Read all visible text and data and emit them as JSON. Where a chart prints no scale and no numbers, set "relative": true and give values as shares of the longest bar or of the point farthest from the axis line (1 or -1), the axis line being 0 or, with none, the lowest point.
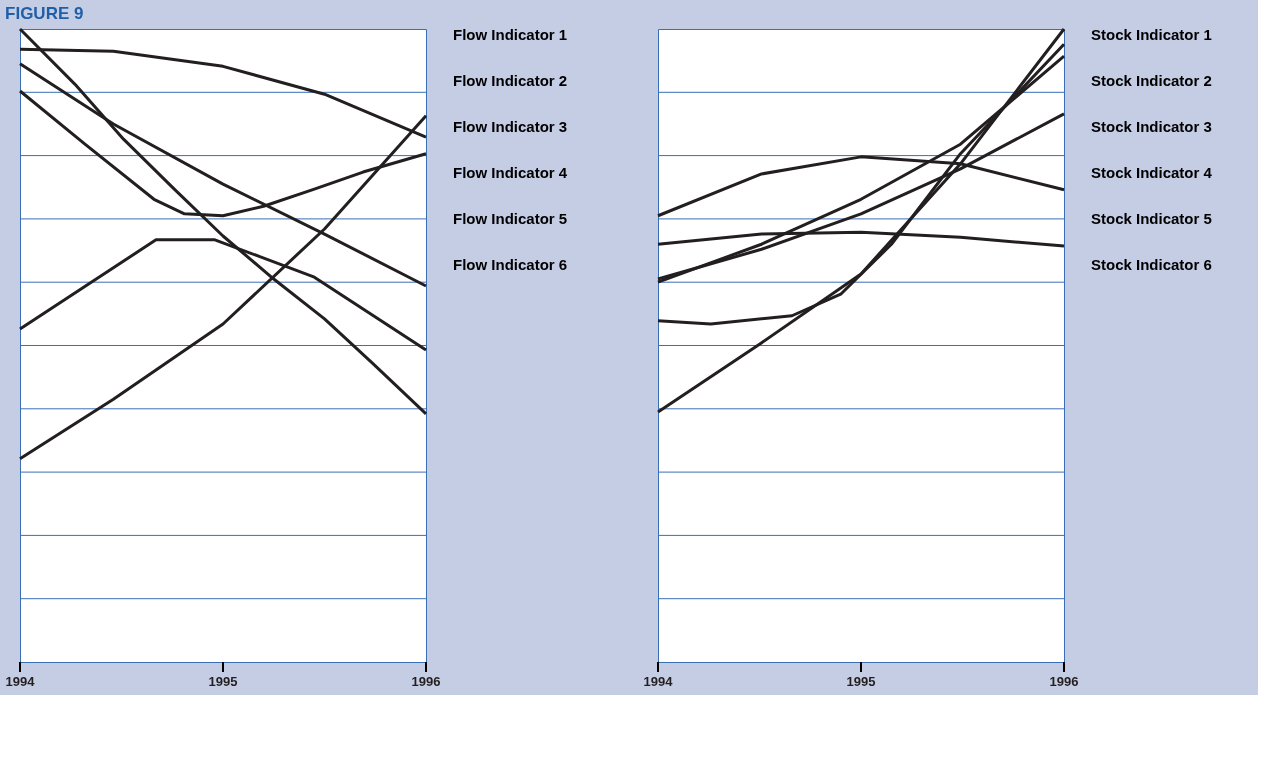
{
  "chart_data": [
    {
      "type": "line",
      "title": "FIGURE 9",
      "relative": true,
      "xlim": [
        1994,
        1996
      ],
      "xticks": [
        1994,
        1995,
        1996
      ],
      "marker": "none",
      "line_style": "solid",
      "ref_lines": [
        {
          "axis": "y",
          "value": 0.1,
          "color": "#3a6fb5"
        },
        {
          "axis": "y",
          "value": 0.2,
          "color": "#3a6fb5"
        },
        {
          "axis": "y",
          "value": 0.3,
          "color": "#3a6fb5"
        },
        {
          "axis": "y",
          "value": 0.4,
          "color": "#3a6fb5"
        },
        {
          "axis": "y",
          "value": 0.5,
          "color": "#3a6fb5"
        },
        {
          "axis": "y",
          "value": 0.6,
          "color": "#3a6fb5"
        },
        {
          "axis": "y",
          "value": 0.7,
          "color": "#3a6fb5"
        },
        {
          "axis": "y",
          "value": 0.8,
          "color": "#3a6fb5"
        },
        {
          "axis": "y",
          "value": 0.9,
          "color": "#3a6fb5"
        }
      ],
      "annotations": [
        "Flow Indicator 1",
        "Flow Indicator 2",
        "Flow Indicator 3",
        "Flow Indicator 4",
        "Flow Indicator 5",
        "Flow Indicator 6"
      ],
      "series": [
        {
          "color": "#231f20",
          "x": [
            1994,
            1994.27,
            1994.51,
            1994.76,
            1995,
            1995.25,
            1995.5,
            1995.74,
            1996
          ],
          "values": [
            1.0,
            0.913,
            0.826,
            0.747,
            0.673,
            0.605,
            0.542,
            0.471,
            0.392
          ]
        },
        {
          "color": "#231f20",
          "x": [
            1994,
            1994.46,
            1995,
            1995.5,
            1996
          ],
          "values": [
            0.968,
            0.965,
            0.941,
            0.897,
            0.829
          ]
        },
        {
          "color": "#231f20",
          "x": [
            1994,
            1994.46,
            1995,
            1995.5,
            1996
          ],
          "values": [
            0.945,
            0.85,
            0.755,
            0.676,
            0.594
          ]
        },
        {
          "color": "#231f20",
          "x": [
            1994,
            1994.32,
            1994.66,
            1994.81,
            1995,
            1995.2,
            1995.45,
            1995.69,
            1996
          ],
          "values": [
            0.902,
            0.818,
            0.731,
            0.708,
            0.705,
            0.72,
            0.747,
            0.774,
            0.803
          ]
        },
        {
          "color": "#231f20",
          "x": [
            1994,
            1994.67,
            1994.96,
            1995.45,
            1996
          ],
          "values": [
            0.526,
            0.667,
            0.667,
            0.608,
            0.493
          ]
        },
        {
          "color": "#231f20",
          "x": [
            1994,
            1994.46,
            1995,
            1995.5,
            1996
          ],
          "values": [
            0.321,
            0.415,
            0.534,
            0.684,
            0.863
          ]
        }
      ]
    },
    {
      "type": "line",
      "relative": true,
      "xlim": [
        1994,
        1996
      ],
      "xticks": [
        1994,
        1995,
        1996
      ],
      "marker": "none",
      "line_style": "solid",
      "ref_lines": [
        {
          "axis": "y",
          "value": 0.1,
          "color": "#3a6fb5"
        },
        {
          "axis": "y",
          "value": 0.2,
          "color": "#3a6fb5"
        },
        {
          "axis": "y",
          "value": 0.3,
          "color": "#3a6fb5"
        },
        {
          "axis": "y",
          "value": 0.4,
          "color": "#3a6fb5"
        },
        {
          "axis": "y",
          "value": 0.5,
          "color": "#3a6fb5"
        },
        {
          "axis": "y",
          "value": 0.6,
          "color": "#3a6fb5"
        },
        {
          "axis": "y",
          "value": 0.7,
          "color": "#3a6fb5"
        },
        {
          "axis": "y",
          "value": 0.8,
          "color": "#3a6fb5"
        },
        {
          "axis": "y",
          "value": 0.9,
          "color": "#3a6fb5"
        }
      ],
      "annotations": [
        "Stock Indicator 1",
        "Stock Indicator 2",
        "Stock Indicator 3",
        "Stock Indicator 4",
        "Stock Indicator 5",
        "Stock Indicator 6"
      ],
      "series": [
        {
          "color": "#231f20",
          "x": [
            1994,
            1994.5,
            1995,
            1995.49,
            1996
          ],
          "values": [
            0.395,
            0.502,
            0.613,
            0.787,
            1.0
          ]
        },
        {
          "color": "#231f20",
          "x": [
            1994,
            1994.26,
            1994.66,
            1994.9,
            1995.15,
            1995.49,
            1996
          ],
          "values": [
            0.539,
            0.534,
            0.547,
            0.581,
            0.66,
            0.803,
            0.976
          ]
        },
        {
          "color": "#231f20",
          "x": [
            1994,
            1994.51,
            1995,
            1995.49,
            1996
          ],
          "values": [
            0.6,
            0.66,
            0.731,
            0.818,
            0.957
          ]
        },
        {
          "color": "#231f20",
          "x": [
            1994,
            1994.51,
            1995,
            1995.49,
            1996
          ],
          "values": [
            0.605,
            0.652,
            0.708,
            0.779,
            0.866
          ]
        },
        {
          "color": "#231f20",
          "x": [
            1994,
            1994.51,
            1995,
            1995.49,
            1996
          ],
          "values": [
            0.705,
            0.771,
            0.798,
            0.787,
            0.746
          ]
        },
        {
          "color": "#231f20",
          "x": [
            1994,
            1994.51,
            1995,
            1995.49,
            1996
          ],
          "values": [
            0.66,
            0.676,
            0.679,
            0.671,
            0.657
          ]
        }
      ]
    }
  ]
}
